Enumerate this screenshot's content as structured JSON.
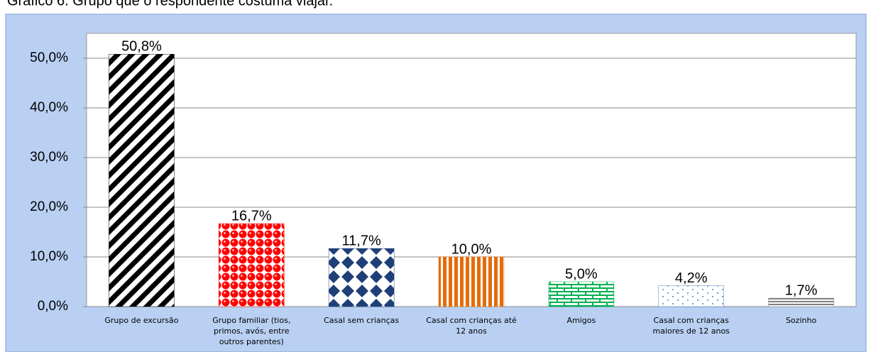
{
  "chart_data": {
    "type": "bar",
    "title": "Gráfico 6. Grupo que o respondente costuma viajar.",
    "categories": [
      "Grupo de excursão",
      "Grupo familiar (tios, primos, avós, entre outros parentes)",
      "Casal sem crianças",
      "Casal com crianças até 12 anos",
      "Amigos",
      "Casal com crianças maiores de 12 anos",
      "Sozinho"
    ],
    "values": [
      50.8,
      16.7,
      11.7,
      10.0,
      5.0,
      4.2,
      1.7
    ],
    "value_labels": [
      "50,8%",
      "16,7%",
      "11,7%",
      "10,0%",
      "5,0%",
      "4,2%",
      "1,7%"
    ],
    "colors": [
      "#000000",
      "#ff0000",
      "#1f3f77",
      "#e46c0a",
      "#00b050",
      "#4f81bd",
      "#7f7f7f"
    ],
    "ylim": [
      0,
      55
    ],
    "yticks": [
      {
        "value": 0,
        "label": "0,0%"
      },
      {
        "value": 10,
        "label": "10,0%"
      },
      {
        "value": 20,
        "label": "20,0%"
      },
      {
        "value": 30,
        "label": "30,0%"
      },
      {
        "value": 40,
        "label": "40,0%"
      },
      {
        "value": 50,
        "label": "50,0%"
      }
    ],
    "grid": true
  }
}
